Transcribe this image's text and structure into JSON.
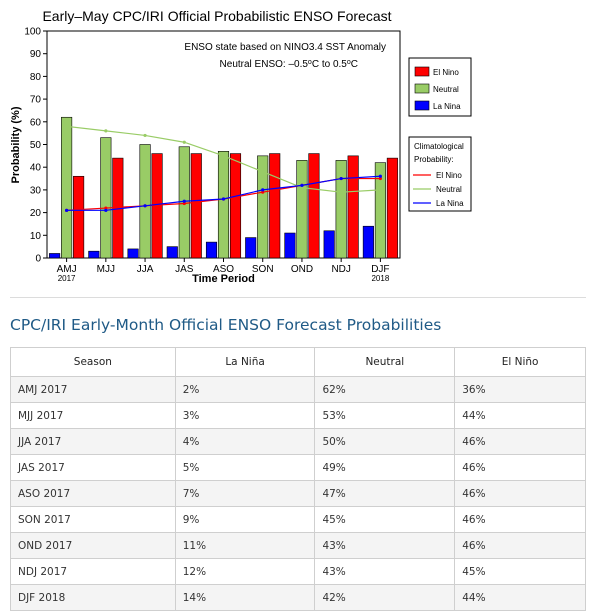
{
  "chart_data": {
    "type": "bar",
    "title": "Early–May CPC/IRI Official Probabilistic ENSO Forecast",
    "xlabel": "Time Period",
    "ylabel": "Probability (%)",
    "ylim": [
      0,
      100
    ],
    "yticks": [
      0,
      10,
      20,
      30,
      40,
      50,
      60,
      70,
      80,
      90,
      100
    ],
    "grid": false,
    "categories": [
      "AMJ",
      "MJJ",
      "JJA",
      "JAS",
      "ASO",
      "SON",
      "OND",
      "NDJ",
      "DJF"
    ],
    "category_sublabels": [
      "2017",
      "",
      "",
      "",
      "",
      "",
      "",
      "",
      "2018"
    ],
    "annotation_line1": "ENSO state based on NINO3.4 SST Anomaly",
    "annotation_line2_prefix": "Neutral ENSO: –0.5",
    "annotation_line2_mid": "C to 0.5",
    "annotation_line2_deg": "o",
    "annotation_line2_suffix": "C",
    "series": [
      {
        "name": "La Nina",
        "color": "#0000ff",
        "values": [
          2,
          3,
          4,
          5,
          7,
          9,
          11,
          12,
          14
        ]
      },
      {
        "name": "Neutral",
        "color": "#99cc66",
        "values": [
          62,
          53,
          50,
          49,
          47,
          45,
          43,
          43,
          42
        ]
      },
      {
        "name": "El Nino",
        "color": "#ff0000",
        "values": [
          36,
          44,
          46,
          46,
          46,
          46,
          46,
          45,
          44
        ]
      }
    ],
    "bar_legend": {
      "placement": "right",
      "items": [
        {
          "name": "El Nino",
          "color": "#ff0000"
        },
        {
          "name": "Neutral",
          "color": "#99cc66"
        },
        {
          "name": "La Nina",
          "color": "#0000ff"
        }
      ]
    },
    "climatology": {
      "title_line1": "Climatological",
      "title_line2": "Probability:",
      "placement": "right",
      "series": [
        {
          "name": "El Nino",
          "color": "#ff0000",
          "values": [
            21,
            22,
            23,
            24,
            26,
            29,
            32,
            35,
            35
          ]
        },
        {
          "name": "Neutral",
          "color": "#99cc66",
          "values": [
            58,
            56,
            54,
            51,
            45,
            38,
            31,
            29,
            30
          ]
        },
        {
          "name": "La Nina",
          "color": "#0000ff",
          "values": [
            21,
            21,
            23,
            25,
            26,
            30,
            32,
            35,
            36
          ]
        }
      ]
    }
  },
  "section": {
    "title": "CPC/IRI Early-Month Official ENSO Forecast Probabilities"
  },
  "table": {
    "headers": [
      "Season",
      "La Niña",
      "Neutral",
      "El Niño"
    ],
    "rows": [
      [
        "AMJ 2017",
        "2%",
        "62%",
        "36%"
      ],
      [
        "MJJ 2017",
        "3%",
        "53%",
        "44%"
      ],
      [
        "JJA 2017",
        "4%",
        "50%",
        "46%"
      ],
      [
        "JAS 2017",
        "5%",
        "49%",
        "46%"
      ],
      [
        "ASO 2017",
        "7%",
        "47%",
        "46%"
      ],
      [
        "SON 2017",
        "9%",
        "45%",
        "46%"
      ],
      [
        "OND 2017",
        "11%",
        "43%",
        "46%"
      ],
      [
        "NDJ 2017",
        "12%",
        "43%",
        "45%"
      ],
      [
        "DJF 2018",
        "14%",
        "42%",
        "44%"
      ]
    ]
  }
}
